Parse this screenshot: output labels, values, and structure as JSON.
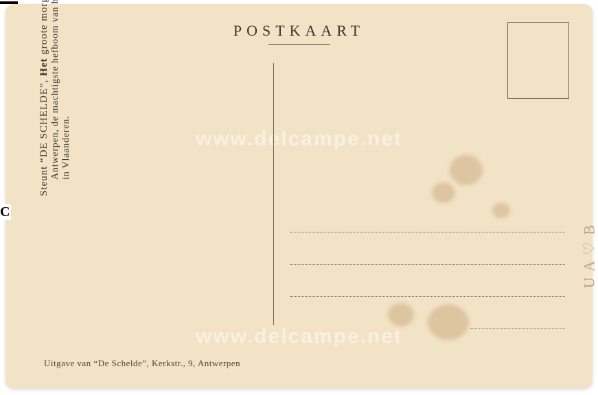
{
  "card": {
    "title": "POSTKAART",
    "stamp_box": true,
    "divider": true,
    "background_color": "#f2e3c6",
    "text_color": "#3b352c",
    "rule_color": "#6b6352"
  },
  "vertical_text": {
    "line1_prefix": "Steunt ",
    "line1_quote": "“DE SCHELDE”, ",
    "line1_bold": "Het",
    "line1_suffix": " groote morgenblad van",
    "line2": "Antwerpen, de machtigste hefboom van het nationale leven",
    "line3": "in Vlaanderen."
  },
  "handwriting": "U A ♡ B",
  "publisher": "Uitgave van “De Schelde”, Kerkstr., 9, Antwerpen",
  "watermark": "www.delcampe.net",
  "edge": {
    "letter": "C"
  },
  "address_lines": {
    "count": 3,
    "has_short_fourth": true
  }
}
